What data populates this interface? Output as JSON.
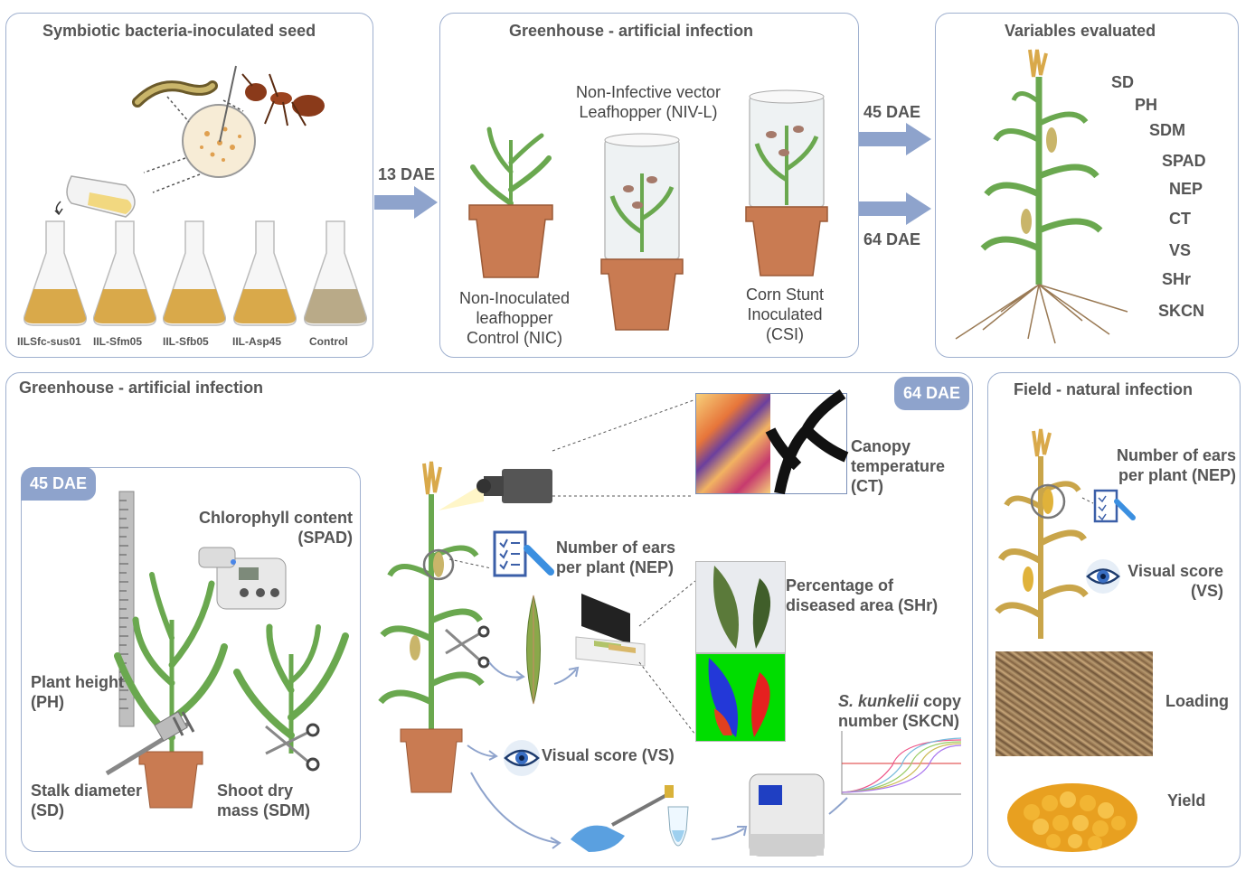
{
  "panels": {
    "seed": {
      "title": "Symbiotic bacteria-inoculated seed",
      "flasks": [
        "IILSfc-sus01",
        "IIL-Sfm05",
        "IIL-Sfb05",
        "IIL-Asp45",
        "Control"
      ]
    },
    "greenhouse_top": {
      "title": "Greenhouse - artificial infection",
      "nic_label": "Non-Inoculated leafhopper Control (NIC)",
      "nivl_label": "Non-Infective vector Leafhopper (NIV-L)",
      "csi_label": "Corn Stunt Inoculated (CSI)"
    },
    "variables": {
      "title": "Variables evaluated",
      "items": [
        "SD",
        "PH",
        "SDM",
        "SPAD",
        "NEP",
        "CT",
        "VS",
        "SHr",
        "SKCN"
      ]
    },
    "greenhouse_bottom": {
      "title": "Greenhouse - artificial infection",
      "badge": "64 DAE",
      "inner_badge": "45 DAE",
      "spad": "Chlorophyll content (SPAD)",
      "ph": "Plant height (PH)",
      "sd": "Stalk diameter (SD)",
      "sdm": "Shoot dry mass (SDM)",
      "ct": "Canopy temperature (CT)",
      "nep": "Number of ears per plant (NEP)",
      "shr": "Percentage of diseased area (SHr)",
      "vs": "Visual score (VS)",
      "skcn_species": "S. kunkelii",
      "skcn_rest": " copy number (SKCN)"
    },
    "field": {
      "title": "Field - natural infection",
      "nep": "Number of ears per plant (NEP)",
      "vs": "Visual score (VS)",
      "loading": "Loading",
      "yield": "Yield"
    }
  },
  "arrows": {
    "a13": "13 DAE",
    "a45": "45 DAE",
    "a64": "64 DAE"
  },
  "colors": {
    "border": "#9fb0cf",
    "arrow": "#8ea3cc",
    "leaf": "#6aa84f",
    "pot": "#c97b52",
    "badge": "#8ea3cc"
  }
}
